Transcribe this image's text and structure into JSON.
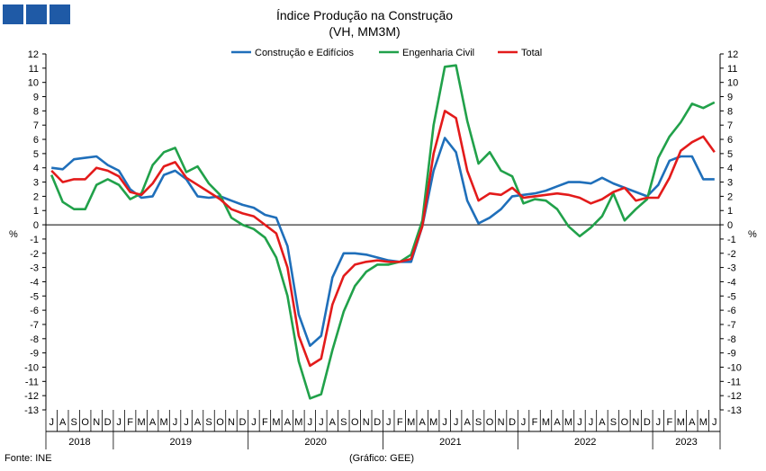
{
  "chart_data": {
    "type": "line",
    "title": "Índice Produção na Construção",
    "subtitle": "(VH, MM3M)",
    "ylabel": "%",
    "ylim": [
      -13,
      12
    ],
    "yticks": [
      12,
      11,
      10,
      9,
      8,
      7,
      6,
      5,
      4,
      3,
      2,
      1,
      0,
      -1,
      -2,
      -3,
      -4,
      -5,
      -6,
      -7,
      -8,
      -9,
      -10,
      -11,
      -12,
      -13
    ],
    "grid": false,
    "legend_position": "top-center",
    "x": [
      "2018-07",
      "2018-08",
      "2018-09",
      "2018-10",
      "2018-11",
      "2018-12",
      "2019-01",
      "2019-02",
      "2019-03",
      "2019-04",
      "2019-05",
      "2019-06",
      "2019-07",
      "2019-08",
      "2019-09",
      "2019-10",
      "2019-11",
      "2019-12",
      "2020-01",
      "2020-02",
      "2020-03",
      "2020-04",
      "2020-05",
      "2020-06",
      "2020-07",
      "2020-08",
      "2020-09",
      "2020-10",
      "2020-11",
      "2020-12",
      "2021-01",
      "2021-02",
      "2021-03",
      "2021-04",
      "2021-05",
      "2021-06",
      "2021-07",
      "2021-08",
      "2021-09",
      "2021-10",
      "2021-11",
      "2021-12",
      "2022-01",
      "2022-02",
      "2022-03",
      "2022-04",
      "2022-05",
      "2022-06",
      "2022-07",
      "2022-08",
      "2022-09",
      "2022-10",
      "2022-11",
      "2022-12",
      "2023-01",
      "2023-02",
      "2023-03",
      "2023-04",
      "2023-05",
      "2023-06"
    ],
    "month_labels": [
      "J",
      "A",
      "S",
      "O",
      "N",
      "D",
      "J",
      "F",
      "M",
      "A",
      "M",
      "J",
      "J",
      "A",
      "S",
      "O",
      "N",
      "D",
      "J",
      "F",
      "M",
      "A",
      "M",
      "J",
      "J",
      "A",
      "S",
      "O",
      "N",
      "D",
      "J",
      "F",
      "M",
      "A",
      "M",
      "J",
      "J",
      "A",
      "S",
      "O",
      "N",
      "D",
      "J",
      "F",
      "M",
      "A",
      "M",
      "J",
      "J",
      "A",
      "S",
      "O",
      "N",
      "D",
      "J",
      "F",
      "M",
      "A",
      "M",
      "J"
    ],
    "year_labels": [
      {
        "label": "2018",
        "start": 0,
        "end": 5
      },
      {
        "label": "2019",
        "start": 6,
        "end": 17
      },
      {
        "label": "2020",
        "start": 18,
        "end": 29
      },
      {
        "label": "2021",
        "start": 30,
        "end": 41
      },
      {
        "label": "2022",
        "start": 42,
        "end": 53
      },
      {
        "label": "2023",
        "start": 54,
        "end": 59
      }
    ],
    "series": [
      {
        "name": "Construção e Edifícios",
        "color": "#1f6fba",
        "values": [
          4.0,
          3.9,
          4.6,
          4.7,
          4.8,
          4.2,
          3.8,
          2.5,
          1.9,
          2.0,
          3.5,
          3.8,
          3.2,
          2.0,
          1.9,
          2.0,
          1.7,
          1.4,
          1.2,
          0.7,
          0.5,
          -1.5,
          -6.3,
          -8.5,
          -7.8,
          -3.7,
          -2.0,
          -2.0,
          -2.1,
          -2.3,
          -2.5,
          -2.6,
          -2.6,
          -0.1,
          3.8,
          6.1,
          5.1,
          1.7,
          0.1,
          0.5,
          1.1,
          2.0,
          2.1,
          2.2,
          2.4,
          2.7,
          3.0,
          3.0,
          2.9,
          3.3,
          2.9,
          2.6,
          2.3,
          2.0,
          2.8,
          4.5,
          4.8,
          4.8,
          3.2,
          3.2
        ]
      },
      {
        "name": "Engenharia Civil",
        "color": "#21a14a",
        "values": [
          3.5,
          1.6,
          1.1,
          1.1,
          2.8,
          3.2,
          2.8,
          1.8,
          2.2,
          4.2,
          5.1,
          5.4,
          3.7,
          4.1,
          2.9,
          2.1,
          0.5,
          0.0,
          -0.3,
          -0.9,
          -2.3,
          -5.0,
          -9.6,
          -12.2,
          -11.9,
          -8.8,
          -6.1,
          -4.3,
          -3.3,
          -2.8,
          -2.8,
          -2.6,
          -2.1,
          0.3,
          7.0,
          11.1,
          11.2,
          7.3,
          4.3,
          5.1,
          3.8,
          3.4,
          1.5,
          1.8,
          1.7,
          1.1,
          -0.1,
          -0.8,
          -0.2,
          0.6,
          2.2,
          0.3,
          1.1,
          1.8,
          4.7,
          6.2,
          7.2,
          8.5,
          8.2,
          8.6
        ]
      },
      {
        "name": "Total",
        "color": "#e31b1b",
        "values": [
          3.8,
          3.0,
          3.2,
          3.2,
          4.0,
          3.8,
          3.4,
          2.3,
          2.1,
          2.9,
          4.1,
          4.4,
          3.3,
          2.8,
          2.3,
          1.8,
          1.1,
          0.8,
          0.6,
          0.0,
          -0.6,
          -3.0,
          -7.8,
          -9.9,
          -9.4,
          -5.6,
          -3.6,
          -2.8,
          -2.6,
          -2.5,
          -2.6,
          -2.6,
          -2.4,
          -0.1,
          5.0,
          8.0,
          7.5,
          3.8,
          1.7,
          2.2,
          2.1,
          2.6,
          1.9,
          2.0,
          2.1,
          2.2,
          2.1,
          1.9,
          1.5,
          1.8,
          2.3,
          2.6,
          1.7,
          1.9,
          1.9,
          3.3,
          5.2,
          5.8,
          6.2,
          5.1
        ]
      }
    ],
    "extra_series_tail": {
      "note_free": true,
      "Construção e Edifícios": [
        3.9,
        4.5
      ],
      "Engenharia Civil": [
        8.9,
        9.1
      ],
      "Total": [
        5.3,
        5.8,
        6.3
      ]
    }
  },
  "footer": {
    "source": "Fonte: INE",
    "credit": "(Gráfico: GEE)"
  }
}
